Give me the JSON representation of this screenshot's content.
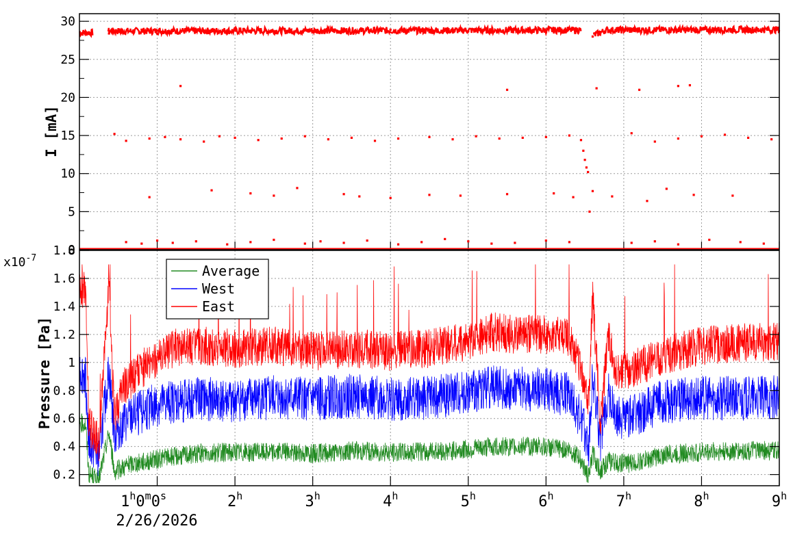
{
  "chart_data": [
    {
      "type": "scatter",
      "name_key": "current",
      "ylabel": "I [mA]",
      "ylim": [
        0,
        31
      ],
      "yticks": [
        0,
        5,
        10,
        15,
        20,
        25,
        30
      ],
      "ytick_labels": [
        "0",
        "5",
        "10",
        "15",
        "20",
        "25",
        "30"
      ],
      "grid": true,
      "color": "#ff0000",
      "description": "Beam current samples over time (hours since start)",
      "series": [
        {
          "name": "",
          "x": [
            0.02,
            0.06,
            0.1,
            0.14,
            0.38,
            0.42,
            0.48,
            0.55,
            0.62,
            0.7,
            0.8,
            0.9,
            1.0,
            1.1,
            1.2,
            1.3,
            1.4,
            1.5,
            1.6,
            1.7,
            1.8,
            1.9,
            2.0,
            2.2,
            2.4,
            2.6,
            2.8,
            3.0,
            3.2,
            3.4,
            3.6,
            3.8,
            4.0,
            4.2,
            4.4,
            4.6,
            4.8,
            5.0,
            5.2,
            5.4,
            5.6,
            5.8,
            6.0,
            6.2,
            6.4,
            6.45,
            6.48,
            6.5,
            6.52,
            6.54,
            6.56,
            6.6,
            6.62,
            6.7,
            6.8,
            6.9,
            7.0,
            7.2,
            7.4,
            7.6,
            7.8,
            8.0,
            8.2,
            8.4,
            8.6,
            8.8,
            8.95,
            0.45,
            0.6,
            0.9,
            1.1,
            1.3,
            1.6,
            1.8,
            2.0,
            2.3,
            2.6,
            2.9,
            3.2,
            3.5,
            3.8,
            4.1,
            4.5,
            4.8,
            5.1,
            5.4,
            5.7,
            6.0,
            6.3,
            7.1,
            7.4,
            7.7,
            8.0,
            8.3,
            8.6,
            8.9,
            0.9,
            1.7,
            2.2,
            2.5,
            2.8,
            3.4,
            3.6,
            4.0,
            4.5,
            4.9,
            5.5,
            6.1,
            6.35,
            6.6,
            6.85,
            7.3,
            7.55,
            7.9,
            8.4,
            1.3,
            5.5,
            6.65,
            7.2,
            7.7,
            7.85,
            0.6,
            0.8,
            1.0,
            1.2,
            1.5,
            1.9,
            2.2,
            2.5,
            2.9,
            3.1,
            3.4,
            3.7,
            4.1,
            4.4,
            4.7,
            5.0,
            5.3,
            5.6,
            6.0,
            6.3,
            7.1,
            7.4,
            7.7,
            8.1,
            8.5,
            8.8
          ],
          "values": [
            28.4,
            28.6,
            28.5,
            28.3,
            28.4,
            28.6,
            28.7,
            28.5,
            28.8,
            28.6,
            28.9,
            28.7,
            28.8,
            28.6,
            28.9,
            28.7,
            29.0,
            28.6,
            28.8,
            28.9,
            28.7,
            28.8,
            28.9,
            28.7,
            28.8,
            28.9,
            28.6,
            28.7,
            28.8,
            28.9,
            28.7,
            28.8,
            28.9,
            28.7,
            28.8,
            28.6,
            28.8,
            28.7,
            28.9,
            28.8,
            28.9,
            28.7,
            28.8,
            28.9,
            29.0,
            14.4,
            13.0,
            11.8,
            10.8,
            10.2,
            5.0,
            28.0,
            28.4,
            28.6,
            28.8,
            28.7,
            28.9,
            28.8,
            28.9,
            28.7,
            28.8,
            28.9,
            29.0,
            28.9,
            28.8,
            29.0,
            28.9,
            15.2,
            14.3,
            14.6,
            14.8,
            14.5,
            14.2,
            14.9,
            14.7,
            14.4,
            14.6,
            14.9,
            14.5,
            14.7,
            14.3,
            14.6,
            14.8,
            14.5,
            14.9,
            14.6,
            14.7,
            14.8,
            15.0,
            15.3,
            14.2,
            14.6,
            14.9,
            15.1,
            14.7,
            14.5,
            6.9,
            7.8,
            7.4,
            7.1,
            8.1,
            7.3,
            7.0,
            6.8,
            7.2,
            7.1,
            7.3,
            7.4,
            6.9,
            7.7,
            7.0,
            6.4,
            8.0,
            7.2,
            7.1,
            21.5,
            21.0,
            21.2,
            21.0,
            21.5,
            21.6,
            1.0,
            0.8,
            1.2,
            0.9,
            1.1,
            0.7,
            1.0,
            1.3,
            0.8,
            1.1,
            0.9,
            1.2,
            0.7,
            1.0,
            1.4,
            1.1,
            0.8,
            0.9,
            1.2,
            1.0,
            0.9,
            1.1,
            0.7,
            1.3,
            1.0,
            0.8
          ]
        }
      ]
    },
    {
      "type": "line",
      "name_key": "pressure",
      "ylabel": "Pressure [Pa]",
      "ylim": [
        1.2e-08,
        1.8e-07
      ],
      "yticks": [
        0.2,
        0.4,
        0.6,
        0.8,
        1.0,
        1.2,
        1.4,
        1.6,
        1.8
      ],
      "ytick_labels": [
        "0.2",
        "0.4",
        "0.6",
        "0.8",
        "1",
        "1.2",
        "1.4",
        "1.6",
        "1.8"
      ],
      "exponent_label": "x10",
      "exponent_sup": "-7",
      "grid": true,
      "legend": "top-left",
      "x": [
        0,
        0.08,
        0.12,
        0.25,
        0.38,
        0.45,
        0.55,
        0.7,
        0.9,
        1.2,
        1.5,
        2.0,
        2.5,
        3.0,
        3.5,
        4.0,
        4.5,
        5.0,
        5.3,
        5.6,
        6.0,
        6.3,
        6.45,
        6.55,
        6.6,
        6.7,
        6.8,
        6.9,
        7.1,
        7.5,
        8.0,
        8.5,
        9.0
      ],
      "series": [
        {
          "name": "Average",
          "color": "#228b22",
          "values": [
            0.57,
            0.56,
            0.2,
            0.16,
            0.5,
            0.22,
            0.25,
            0.28,
            0.3,
            0.33,
            0.35,
            0.36,
            0.36,
            0.35,
            0.37,
            0.36,
            0.36,
            0.38,
            0.4,
            0.4,
            0.4,
            0.38,
            0.3,
            0.18,
            0.35,
            0.22,
            0.3,
            0.28,
            0.28,
            0.34,
            0.36,
            0.37,
            0.37
          ]
        },
        {
          "name": "West",
          "color": "#0000ff",
          "values": [
            0.95,
            0.9,
            0.42,
            0.33,
            0.95,
            0.48,
            0.56,
            0.62,
            0.68,
            0.72,
            0.74,
            0.73,
            0.75,
            0.74,
            0.76,
            0.74,
            0.75,
            0.78,
            0.83,
            0.82,
            0.8,
            0.77,
            0.6,
            0.4,
            0.9,
            0.45,
            0.78,
            0.6,
            0.62,
            0.72,
            0.75,
            0.74,
            0.75
          ]
        },
        {
          "name": "East",
          "color": "#ff0000",
          "values": [
            1.55,
            1.5,
            0.55,
            0.42,
            1.55,
            0.6,
            0.82,
            0.9,
            1.0,
            1.1,
            1.12,
            1.1,
            1.12,
            1.08,
            1.1,
            1.08,
            1.1,
            1.15,
            1.22,
            1.2,
            1.2,
            1.18,
            0.95,
            0.7,
            1.5,
            0.55,
            1.2,
            0.95,
            0.95,
            1.05,
            1.12,
            1.14,
            1.15
          ]
        }
      ]
    }
  ],
  "xaxis": {
    "range_hours": [
      0,
      9
    ],
    "ticks": [
      {
        "h": 1,
        "label": "1",
        "sup": "h",
        "rest": "0",
        "rest_sup": "m",
        "rest2": "0",
        "rest2_sup": "s"
      },
      {
        "h": 2,
        "label": "2",
        "sup": "h"
      },
      {
        "h": 3,
        "label": "3",
        "sup": "h"
      },
      {
        "h": 4,
        "label": "4",
        "sup": "h"
      },
      {
        "h": 5,
        "label": "5",
        "sup": "h"
      },
      {
        "h": 6,
        "label": "6",
        "sup": "h"
      },
      {
        "h": 7,
        "label": "7",
        "sup": "h"
      },
      {
        "h": 8,
        "label": "8",
        "sup": "h"
      },
      {
        "h": 9,
        "label": "9",
        "sup": "h"
      }
    ],
    "date": "2/26/2026"
  }
}
